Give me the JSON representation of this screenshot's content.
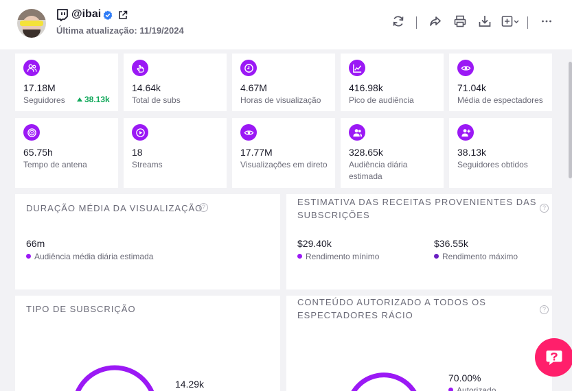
{
  "profile": {
    "channel_name": "@ibai",
    "last_update": "Última atualização: 11/19/2024"
  },
  "toolbar": {
    "icons": [
      "refresh-icon",
      "share-icon",
      "print-icon",
      "download-icon",
      "add-dropdown-icon",
      "more-icon"
    ]
  },
  "stats": [
    {
      "icon": "followers-icon",
      "value": "17.18M",
      "label": "Seguidores",
      "delta": "38.13k"
    },
    {
      "icon": "subs-icon",
      "value": "14.64k",
      "label": "Total de subs"
    },
    {
      "icon": "clock-icon",
      "value": "4.67M",
      "label": "Horas de visualização"
    },
    {
      "icon": "chart-line-icon",
      "value": "416.98k",
      "label": "Pico de audiência"
    },
    {
      "icon": "eye-icon",
      "value": "71.04k",
      "label": "Média de espectadores"
    },
    {
      "icon": "target-icon",
      "value": "65.75h",
      "label": "Tempo de antena"
    },
    {
      "icon": "play-icon",
      "value": "18",
      "label": "Streams"
    },
    {
      "icon": "eye-icon",
      "value": "17.77M",
      "label": "Visualizações em direto"
    },
    {
      "icon": "audience-icon",
      "value": "328.65k",
      "label": "Audiência diária estimada"
    },
    {
      "icon": "user-plus-icon",
      "value": "38.13k",
      "label": "Seguidores obtidos"
    }
  ],
  "watch_duration": {
    "title": "DURAÇÃO MÉDIA DA VISUALIZAÇÃO",
    "value": "66m",
    "label": "Audiência média diária estimada"
  },
  "revenue": {
    "title": "ESTIMATIVA DAS RECEITAS PROVENIENTES DAS SUBSCRIÇÕES",
    "min_value": "$29.40k",
    "min_label": "Rendimento mínimo",
    "max_value": "$36.55k",
    "max_label": "Rendimento máximo"
  },
  "subscription_type": {
    "title": "TIPO DE SUBSCRIÇÃO",
    "value": "14.29k"
  },
  "authorized_content": {
    "title": "CONTEÚDO AUTORIZADO A TODOS OS ESPECTADORES RÁCIO",
    "value": "70.00%",
    "label": "Autorizado"
  },
  "colors": {
    "accent": "#9b19f5",
    "accent_dark": "#6a1fc2",
    "positive": "#11a85a",
    "chat": "#ff1f6b"
  }
}
